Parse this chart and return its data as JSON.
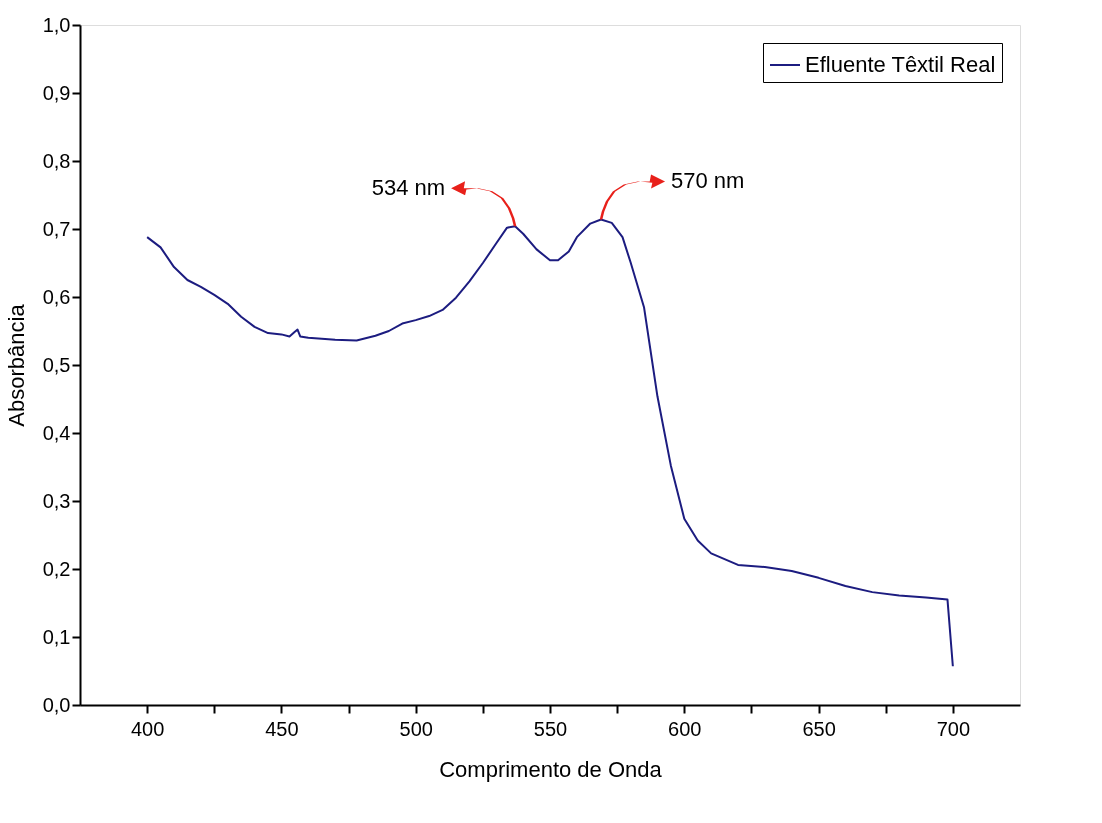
{
  "chart_data": {
    "type": "line",
    "xlabel": "Comprimento de Onda",
    "ylabel": "Absorbância",
    "xlim": [
      375,
      725
    ],
    "xticks": [
      400,
      {
        "value": 425,
        "label": null
      },
      450,
      {
        "value": 475,
        "label": null
      },
      500,
      {
        "value": 525,
        "label": null
      },
      550,
      {
        "value": 575,
        "label": null
      },
      600,
      {
        "value": 625,
        "label": null
      },
      650,
      {
        "value": 675,
        "label": null
      },
      700
    ],
    "ylim": [
      0,
      1
    ],
    "yticks": [
      {
        "value": 0,
        "label": "0,0"
      },
      {
        "value": 0.1,
        "label": "0,1"
      },
      {
        "value": 0.2,
        "label": "0,2"
      },
      {
        "value": 0.3,
        "label": "0,3"
      },
      {
        "value": 0.4,
        "label": "0,4"
      },
      {
        "value": 0.5,
        "label": "0,5"
      },
      {
        "value": 0.6,
        "label": "0,6"
      },
      {
        "value": 0.7,
        "label": "0,7"
      },
      {
        "value": 0.8,
        "label": "0,8"
      },
      {
        "value": 0.9,
        "label": "0,9"
      },
      {
        "value": 1.0,
        "label": "1,0"
      }
    ],
    "grid": false,
    "legend": "top right",
    "marker": "none",
    "line_style": "solid",
    "series": [
      {
        "name": "Efluente Têxtil Real",
        "color": "#1c1c80",
        "x": [
          400,
          405,
          410,
          415,
          420,
          425,
          430,
          435,
          440,
          445,
          450,
          453,
          455,
          456,
          457,
          460,
          470,
          478,
          485,
          490,
          495,
          500,
          505,
          510,
          515,
          520,
          525,
          530,
          534,
          537,
          540,
          545,
          550,
          553,
          557,
          560,
          565,
          569,
          573,
          577,
          580,
          585,
          590,
          595,
          600,
          605,
          610,
          620,
          630,
          640,
          650,
          660,
          670,
          680,
          690,
          698,
          700
        ],
        "values": [
          0.688,
          0.673,
          0.644,
          0.625,
          0.615,
          0.603,
          0.59,
          0.571,
          0.556,
          0.547,
          0.545,
          0.542,
          0.549,
          0.552,
          0.542,
          0.54,
          0.537,
          0.536,
          0.543,
          0.55,
          0.561,
          0.566,
          0.572,
          0.581,
          0.599,
          0.623,
          0.65,
          0.679,
          0.702,
          0.704,
          0.693,
          0.67,
          0.654,
          0.654,
          0.667,
          0.688,
          0.708,
          0.714,
          0.709,
          0.688,
          0.651,
          0.585,
          0.454,
          0.352,
          0.274,
          0.242,
          0.223,
          0.206,
          0.203,
          0.197,
          0.187,
          0.175,
          0.166,
          0.161,
          0.158,
          0.155,
          0.057
        ]
      }
    ],
    "annotations": [
      "534 nm",
      "570 nm"
    ]
  }
}
